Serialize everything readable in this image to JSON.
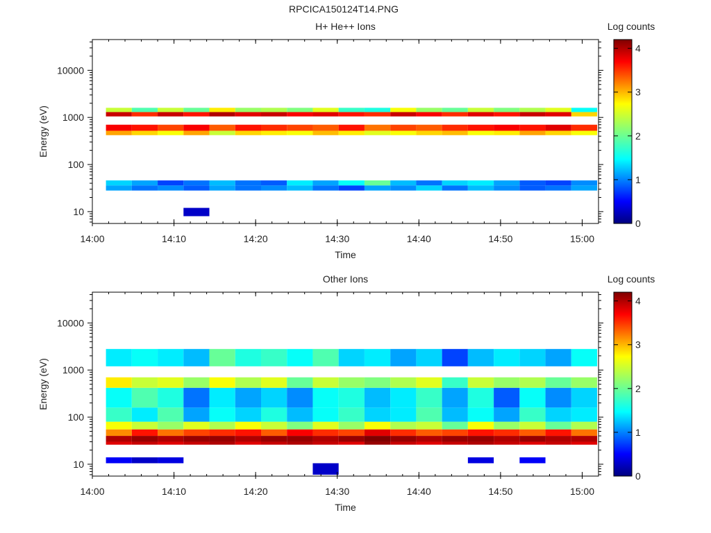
{
  "title": "RPCICA150124T14.PNG",
  "colors": {
    "background": "#ffffff",
    "axis": "#000000"
  },
  "chart_data": [
    {
      "type": "heatmap",
      "title": "H+ He++ Ions",
      "xlabel": "Time",
      "ylabel": "Energy (eV)",
      "xlim": [
        "14:00",
        "15:02"
      ],
      "xticks": [
        "14:00",
        "14:10",
        "14:20",
        "14:30",
        "14:40",
        "14:50",
        "15:00"
      ],
      "ylim": [
        5.6,
        45000
      ],
      "yscale": "log",
      "yticks": [
        "10",
        "100",
        "1000",
        "10000"
      ],
      "colorbar": {
        "label": "Log counts",
        "range": [
          0,
          4.2
        ],
        "ticks": [
          "0",
          "1",
          "2",
          "3",
          "4"
        ],
        "colormap": "jet"
      },
      "time_bins_start": [
        "14:01:40",
        "14:04:50",
        "14:08:00",
        "14:11:10",
        "14:14:20",
        "14:17:30",
        "14:20:40",
        "14:23:50",
        "14:27:00",
        "14:30:10",
        "14:33:20",
        "14:36:30",
        "14:39:40",
        "14:42:50",
        "14:46:00",
        "14:49:10",
        "14:52:20",
        "14:55:30",
        "14:58:40"
      ],
      "bands": [
        {
          "energy": [
            520,
            700
          ],
          "log_counts": [
            3.7,
            3.6,
            3.4,
            3.7,
            3.3,
            3.6,
            3.5,
            3.4,
            3.3,
            3.6,
            3.2,
            3.4,
            3.3,
            3.5,
            3.6,
            3.7,
            3.6,
            3.8,
            3.5
          ]
        },
        {
          "energy": [
            420,
            520
          ],
          "log_counts": [
            3.0,
            2.8,
            2.6,
            3.0,
            2.4,
            2.8,
            2.7,
            2.6,
            2.9,
            2.7,
            2.5,
            2.6,
            2.8,
            2.9,
            2.6,
            2.7,
            3.0,
            2.8,
            2.6
          ]
        },
        {
          "energy": [
            1050,
            1300
          ],
          "log_counts": [
            3.9,
            3.5,
            3.9,
            3.6,
            4.0,
            3.8,
            3.9,
            3.7,
            3.8,
            3.6,
            3.5,
            3.9,
            3.7,
            3.5,
            3.8,
            3.6,
            3.9,
            3.8,
            2.8
          ]
        },
        {
          "energy": [
            1300,
            1600
          ],
          "log_counts": [
            2.4,
            1.9,
            2.4,
            2.0,
            2.7,
            2.2,
            2.3,
            2.1,
            2.5,
            1.8,
            1.7,
            2.6,
            2.2,
            2.0,
            2.4,
            2.1,
            2.3,
            2.5,
            1.6
          ]
        },
        {
          "energy": [
            28,
            36
          ],
          "log_counts": [
            1.2,
            1.0,
            1.1,
            0.9,
            1.2,
            1.0,
            1.1,
            1.3,
            1.0,
            0.8,
            1.2,
            1.1,
            1.4,
            1.0,
            1.3,
            1.1,
            0.9,
            1.0,
            1.2
          ]
        },
        {
          "energy": [
            36,
            46
          ],
          "log_counts": [
            1.4,
            1.2,
            0.8,
            1.0,
            1.3,
            1.0,
            0.9,
            1.5,
            1.2,
            1.6,
            2.0,
            1.3,
            1.0,
            1.4,
            1.5,
            1.2,
            0.9,
            0.8,
            1.1
          ]
        },
        {
          "energy": [
            8,
            12
          ],
          "log_counts": [
            null,
            null,
            null,
            0.3,
            null,
            null,
            null,
            null,
            null,
            null,
            null,
            null,
            null,
            null,
            null,
            null,
            null,
            null,
            null
          ]
        }
      ],
      "sparse_counts_note": ""
    },
    {
      "type": "heatmap",
      "title": "Other Ions",
      "xlabel": "Time",
      "ylabel": "Energy (eV)",
      "xlim": [
        "14:00",
        "15:02"
      ],
      "xticks": [
        "14:00",
        "14:10",
        "14:20",
        "14:30",
        "14:40",
        "14:50",
        "15:00"
      ],
      "ylim": [
        5.6,
        45000
      ],
      "yscale": "log",
      "yticks": [
        "10",
        "100",
        "1000",
        "10000"
      ],
      "colorbar": {
        "label": "Log counts",
        "range": [
          0,
          4.2
        ],
        "ticks": [
          "0",
          "1",
          "2",
          "3",
          "4"
        ],
        "colormap": "jet"
      },
      "time_bins_start": [
        "14:01:40",
        "14:04:50",
        "14:08:00",
        "14:11:10",
        "14:14:20",
        "14:17:30",
        "14:20:40",
        "14:23:50",
        "14:27:00",
        "14:30:10",
        "14:33:20",
        "14:36:30",
        "14:39:40",
        "14:42:50",
        "14:46:00",
        "14:49:10",
        "14:52:20",
        "14:55:30",
        "14:58:40"
      ],
      "bands": [
        {
          "energy": [
            26,
            30
          ],
          "log_counts": [
            3.8,
            3.9,
            3.8,
            3.9,
            4.0,
            3.8,
            3.9,
            4.0,
            3.9,
            3.8,
            4.1,
            3.9,
            3.8,
            3.9,
            4.0,
            3.9,
            3.8,
            3.9,
            3.8
          ]
        },
        {
          "energy": [
            30,
            40
          ],
          "log_counts": [
            4.0,
            4.1,
            4.0,
            4.1,
            4.1,
            4.0,
            4.1,
            4.1,
            4.0,
            4.1,
            4.2,
            4.1,
            4.0,
            4.1,
            4.1,
            4.0,
            4.1,
            4.0,
            4.0
          ]
        },
        {
          "energy": [
            40,
            55
          ],
          "log_counts": [
            3.1,
            3.6,
            3.2,
            3.4,
            3.5,
            3.6,
            3.3,
            3.7,
            3.5,
            3.4,
            3.8,
            3.5,
            3.3,
            3.4,
            3.6,
            3.5,
            3.3,
            3.6,
            3.2
          ]
        },
        {
          "energy": [
            55,
            80
          ],
          "log_counts": [
            2.6,
            2.4,
            2.2,
            2.5,
            2.3,
            2.6,
            2.4,
            2.1,
            2.5,
            2.2,
            2.6,
            2.3,
            2.4,
            2.0,
            2.6,
            2.2,
            2.4,
            2.0,
            2.3
          ]
        },
        {
          "energy": [
            80,
            160
          ],
          "log_counts": [
            1.8,
            1.5,
            1.9,
            1.2,
            1.6,
            1.4,
            1.7,
            1.3,
            1.6,
            1.8,
            1.4,
            1.5,
            1.9,
            1.3,
            1.6,
            1.2,
            1.8,
            1.4,
            1.5
          ]
        },
        {
          "energy": [
            160,
            420
          ],
          "log_counts": [
            1.6,
            1.9,
            1.7,
            1.0,
            1.5,
            1.2,
            1.4,
            1.1,
            1.6,
            1.7,
            1.3,
            1.5,
            1.8,
            1.2,
            1.7,
            0.9,
            1.6,
            1.1,
            1.4
          ]
        },
        {
          "energy": [
            420,
            700
          ],
          "log_counts": [
            2.7,
            2.4,
            2.5,
            2.2,
            2.6,
            2.3,
            2.5,
            2.0,
            2.4,
            2.2,
            2.1,
            2.3,
            2.5,
            1.8,
            2.4,
            2.2,
            2.3,
            2.0,
            2.2
          ]
        },
        {
          "energy": [
            1200,
            2800
          ],
          "log_counts": [
            1.5,
            1.6,
            1.5,
            1.3,
            2.0,
            1.7,
            1.8,
            1.6,
            1.9,
            1.4,
            1.5,
            1.2,
            1.4,
            0.8,
            1.3,
            1.5,
            1.4,
            1.2,
            1.6
          ]
        },
        {
          "energy": [
            10.5,
            14
          ],
          "log_counts": [
            0.5,
            0.3,
            0.4,
            null,
            null,
            null,
            null,
            null,
            null,
            null,
            null,
            null,
            null,
            null,
            0.4,
            null,
            0.5,
            null,
            null
          ]
        },
        {
          "energy": [
            6,
            10.5
          ],
          "log_counts": [
            null,
            null,
            null,
            null,
            null,
            null,
            null,
            null,
            0.3,
            null,
            null,
            null,
            null,
            null,
            null,
            null,
            null,
            null,
            null
          ]
        }
      ]
    }
  ]
}
